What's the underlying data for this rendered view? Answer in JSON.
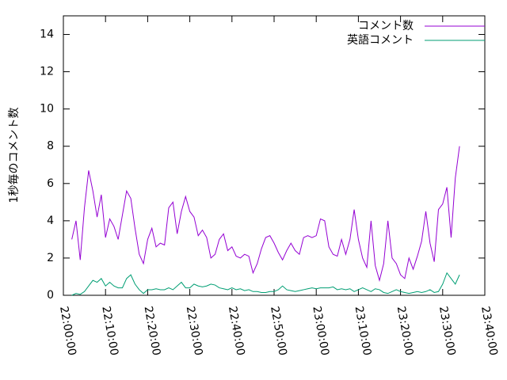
{
  "chart_data": {
    "type": "line",
    "y_label": "1秒毎のコメント数",
    "x": [
      "22:02:00",
      "22:03:00",
      "22:04:00",
      "22:05:00",
      "22:06:00",
      "22:07:00",
      "22:08:00",
      "22:09:00",
      "22:10:00",
      "22:11:00",
      "22:12:00",
      "22:13:00",
      "22:14:00",
      "22:15:00",
      "22:16:00",
      "22:17:00",
      "22:18:00",
      "22:19:00",
      "22:20:00",
      "22:21:00",
      "22:22:00",
      "22:23:00",
      "22:24:00",
      "22:25:00",
      "22:26:00",
      "22:27:00",
      "22:28:00",
      "22:29:00",
      "22:30:00",
      "22:31:00",
      "22:32:00",
      "22:33:00",
      "22:34:00",
      "22:35:00",
      "22:36:00",
      "22:37:00",
      "22:38:00",
      "22:39:00",
      "22:40:00",
      "22:41:00",
      "22:42:00",
      "22:43:00",
      "22:44:00",
      "22:45:00",
      "22:46:00",
      "22:47:00",
      "22:48:00",
      "22:49:00",
      "22:50:00",
      "22:51:00",
      "22:52:00",
      "22:53:00",
      "22:54:00",
      "22:55:00",
      "22:56:00",
      "22:57:00",
      "22:58:00",
      "22:59:00",
      "23:00:00",
      "23:01:00",
      "23:02:00",
      "23:03:00",
      "23:04:00",
      "23:05:00",
      "23:06:00",
      "23:07:00",
      "23:08:00",
      "23:09:00",
      "23:10:00",
      "23:11:00",
      "23:12:00",
      "23:13:00",
      "23:14:00",
      "23:15:00",
      "23:16:00",
      "23:17:00",
      "23:18:00",
      "23:19:00",
      "23:20:00",
      "23:21:00",
      "23:22:00",
      "23:23:00",
      "23:24:00",
      "23:25:00",
      "23:26:00",
      "23:27:00",
      "23:28:00",
      "23:29:00",
      "23:30:00",
      "23:31:00",
      "23:32:00",
      "23:33:00",
      "23:34:00"
    ],
    "series": [
      {
        "name": "コメント数",
        "color": "#9400d3",
        "values": [
          3.0,
          4.0,
          1.9,
          4.7,
          6.7,
          5.6,
          4.2,
          5.4,
          3.1,
          4.1,
          3.7,
          3.0,
          4.3,
          5.6,
          5.2,
          3.6,
          2.2,
          1.7,
          3.0,
          3.6,
          2.6,
          2.8,
          2.7,
          4.7,
          5.0,
          3.3,
          4.5,
          5.3,
          4.5,
          4.2,
          3.2,
          3.5,
          3.1,
          2.0,
          2.2,
          3.0,
          3.3,
          2.4,
          2.6,
          2.1,
          2.0,
          2.2,
          2.1,
          1.2,
          1.7,
          2.5,
          3.1,
          3.2,
          2.8,
          2.3,
          1.9,
          2.4,
          2.8,
          2.4,
          2.2,
          3.1,
          3.2,
          3.1,
          3.2,
          4.1,
          4.0,
          2.6,
          2.2,
          2.1,
          3.0,
          2.2,
          3.0,
          4.6,
          3.0,
          2.0,
          1.5,
          4.0,
          1.6,
          0.8,
          1.7,
          4.0,
          2.0,
          1.7,
          1.1,
          0.9,
          2.0,
          1.4,
          2.1,
          2.9,
          4.5,
          2.8,
          1.8,
          4.6,
          4.9,
          5.8,
          3.1,
          6.3,
          8.0
        ]
      },
      {
        "name": "英語コメント",
        "color": "#009e73",
        "values": [
          0,
          0.1,
          0.05,
          0.2,
          0.5,
          0.8,
          0.7,
          0.9,
          0.5,
          0.7,
          0.5,
          0.4,
          0.4,
          0.9,
          1.1,
          0.6,
          0.3,
          0.1,
          0.3,
          0.3,
          0.35,
          0.3,
          0.3,
          0.4,
          0.3,
          0.5,
          0.7,
          0.4,
          0.4,
          0.6,
          0.5,
          0.45,
          0.5,
          0.6,
          0.55,
          0.4,
          0.35,
          0.3,
          0.4,
          0.3,
          0.35,
          0.25,
          0.3,
          0.2,
          0.2,
          0.15,
          0.15,
          0.2,
          0.2,
          0.3,
          0.5,
          0.3,
          0.25,
          0.2,
          0.25,
          0.3,
          0.35,
          0.4,
          0.35,
          0.4,
          0.4,
          0.4,
          0.45,
          0.3,
          0.35,
          0.3,
          0.35,
          0.2,
          0.3,
          0.4,
          0.3,
          0.2,
          0.35,
          0.3,
          0.15,
          0.1,
          0.2,
          0.3,
          0.2,
          0.15,
          0.1,
          0.15,
          0.2,
          0.15,
          0.2,
          0.3,
          0.15,
          0.2,
          0.6,
          1.2,
          0.9,
          0.6,
          1.1
        ]
      }
    ],
    "xlim": [
      "22:00:00",
      "23:40:00"
    ],
    "xticks": [
      "22:00:00",
      "22:10:00",
      "22:20:00",
      "22:30:00",
      "22:40:00",
      "22:50:00",
      "23:00:00",
      "23:10:00",
      "23:20:00",
      "23:30:00",
      "23:40:00"
    ],
    "ylim": [
      0,
      15
    ],
    "yticks": [
      0,
      2,
      4,
      6,
      8,
      10,
      12,
      14
    ],
    "legend": "top-right"
  }
}
